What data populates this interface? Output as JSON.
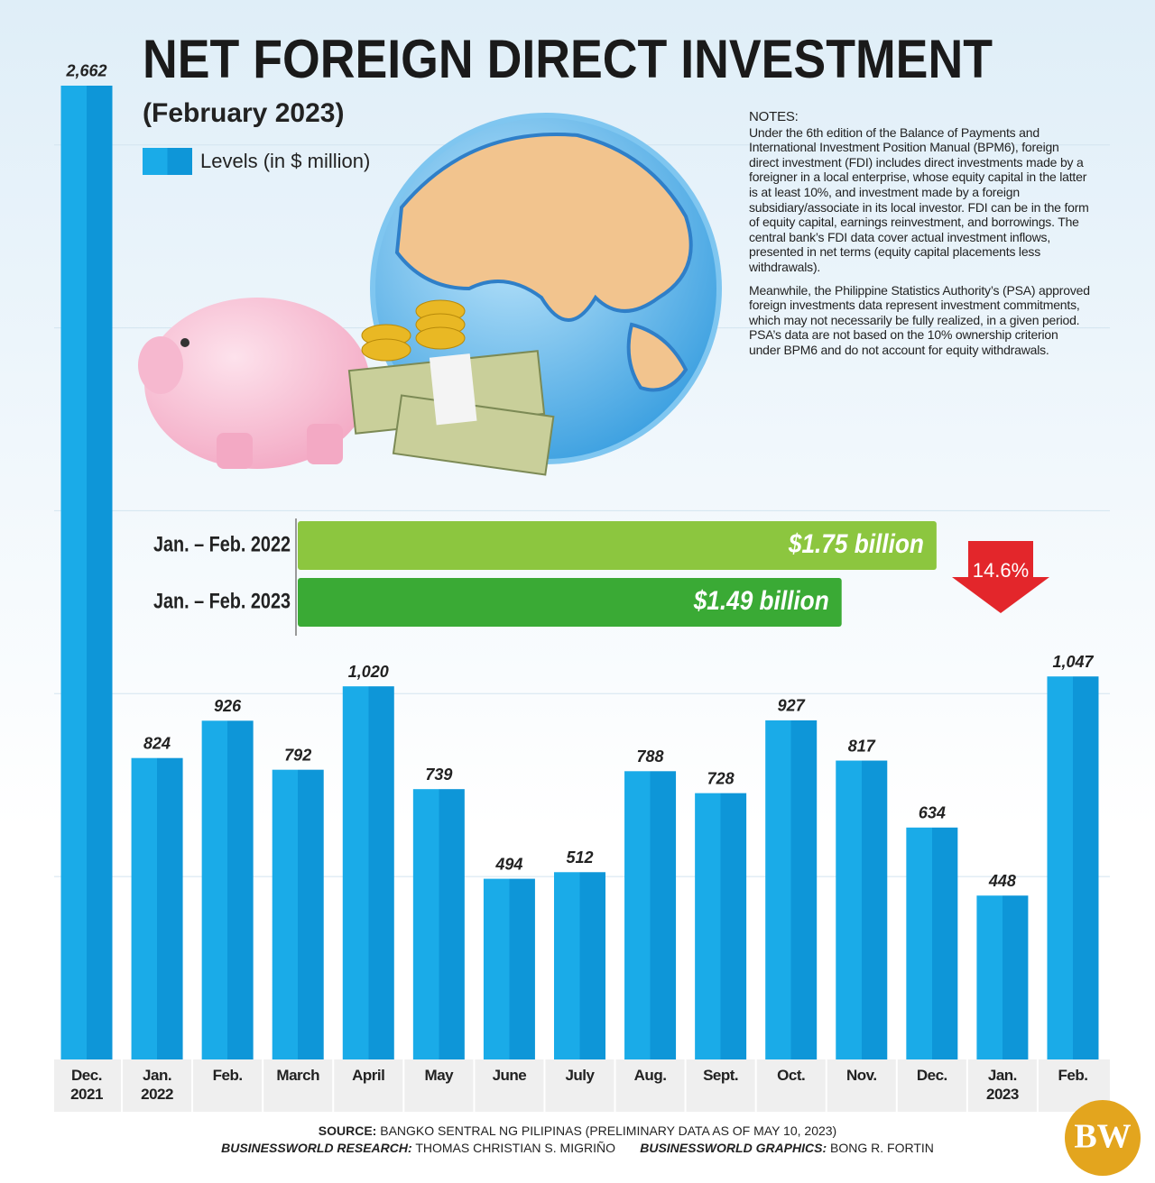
{
  "chart_data": [
    {
      "type": "bar",
      "title": "NET FOREIGN DIRECT INVESTMENT",
      "subtitle": "(February 2023)",
      "categories": [
        "Dec. 2021",
        "Jan. 2022",
        "Feb.",
        "March",
        "April",
        "May",
        "June",
        "July",
        "Aug.",
        "Sept.",
        "Oct.",
        "Nov.",
        "Dec.",
        "Jan. 2023",
        "Feb."
      ],
      "series": [
        {
          "name": "Levels (in $ million)",
          "color": "#1aabe8",
          "color_dark": "#0e96d8",
          "values": [
            2662,
            824,
            926,
            792,
            1020,
            739,
            494,
            512,
            788,
            728,
            927,
            817,
            634,
            448,
            1047
          ],
          "value_labels": [
            "2,662",
            "824",
            "926",
            "792",
            "1,020",
            "739",
            "494",
            "512",
            "788",
            "728",
            "927",
            "817",
            "634",
            "448",
            "1,047"
          ]
        }
      ],
      "ylim": [
        0,
        2800
      ],
      "yticks": [
        500,
        1000,
        1500,
        2000,
        2500
      ],
      "grid": true,
      "tick_labels": false
    },
    {
      "type": "hbar",
      "categories": [
        "Jan. – Feb. 2022",
        "Jan. – Feb. 2023"
      ],
      "values": [
        1.75,
        1.49
      ],
      "value_labels": [
        "$1.75 billion",
        "$1.49 billion"
      ],
      "colors": [
        "#8cc63f",
        "#3aaa35"
      ],
      "xlim": [
        0,
        2
      ],
      "annotation": "14.6%"
    }
  ],
  "notes": {
    "title": "NOTES:",
    "paragraphs": [
      "Under the 6th edition of the Balance of Payments and International Investment Position Manual (BPM6), foreign direct investment (FDI) includes direct investments made by a foreigner in a local enterprise, whose equity capital in the latter is at least 10%, and investment made by a foreign subsidiary/associate in its local investor. FDI can be in the form of equity capital, earnings reinvestment, and borrowings. The central bank’s FDI data cover actual investment inflows, presented in net terms (equity capital placements less withdrawals).",
      "Meanwhile, the Philippine Statistics Authority’s (PSA) approved foreign investments data represent investment commitments, which may not necessarily be fully realized, in a given period. PSA’s data are not based on the 10% ownership criterion under BPM6 and do not account for equity withdrawals."
    ]
  },
  "footer": {
    "source_label": "SOURCE:",
    "source": "BANGKO SENTRAL NG PILIPINAS (PRELIMINARY DATA AS OF MAY 10, 2023)",
    "research_label": "BUSINESSWORLD RESEARCH:",
    "research": "THOMAS CHRISTIAN S. MIGRIÑO",
    "graphics_label": "BUSINESSWORLD GRAPHICS:",
    "graphics": "BONG R. FORTIN",
    "logo": "BW"
  }
}
